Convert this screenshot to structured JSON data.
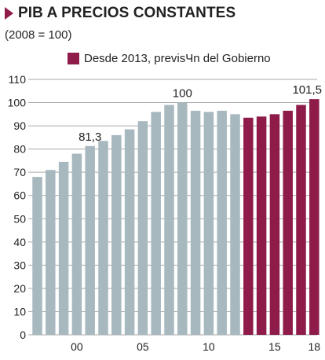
{
  "header": {
    "title": "PIB A PRECIOS CONSTANTES",
    "subtitle": "(2008 = 100)",
    "marker_icon": "triangle-right-icon"
  },
  "legend": {
    "label": "Desde 2013, previsЧn del Gobierno",
    "color": "#8e1b4a"
  },
  "colors": {
    "actual": "#a8b8bf",
    "forecast": "#8e1b4a",
    "grid": "#a9a9a9",
    "text": "#222222"
  },
  "chart_data": {
    "type": "bar",
    "title": "PIB A PRECIOS CONSTANTES",
    "subtitle": "(2008 = 100)",
    "xlabel": "",
    "ylabel": "",
    "ylim": [
      0,
      110
    ],
    "yticks": [
      "0",
      "10",
      "20",
      "30",
      "40",
      "50",
      "60",
      "70",
      "80",
      "90",
      "100",
      "110"
    ],
    "grid": true,
    "legend_position": "top",
    "categories": [
      "1997",
      "1998",
      "1999",
      "2000",
      "2001",
      "2002",
      "2003",
      "2004",
      "2005",
      "2006",
      "2007",
      "2008",
      "2009",
      "2010",
      "2011",
      "2012",
      "2013",
      "2014",
      "2015",
      "2016",
      "2017",
      "2018"
    ],
    "xtick_labels": [
      {
        "category": "2000",
        "label": "00"
      },
      {
        "category": "2005",
        "label": "05"
      },
      {
        "category": "2010",
        "label": "10"
      },
      {
        "category": "2015",
        "label": "15"
      },
      {
        "category": "2018",
        "label": "18"
      }
    ],
    "series": [
      {
        "values": [
          68,
          71,
          74.5,
          78,
          81.3,
          83.5,
          86,
          88.5,
          92,
          96,
          99,
          100,
          96.5,
          96,
          96.5,
          95,
          93.5,
          94,
          95,
          96.5,
          99,
          101.5
        ],
        "forecast_from_index": 16
      }
    ],
    "data_labels": [
      {
        "category": "2001",
        "text": "81,3"
      },
      {
        "category": "2008",
        "text": "100"
      },
      {
        "category": "2018",
        "text": "101,5"
      }
    ]
  }
}
